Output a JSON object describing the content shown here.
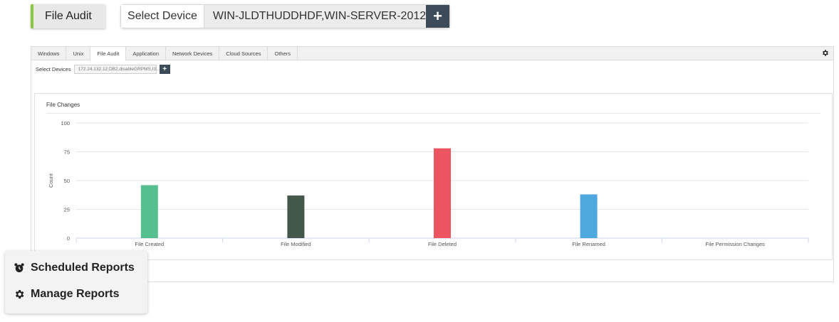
{
  "header": {
    "category_label": "File Audit",
    "device_label": "Select Device",
    "device_value": "WIN-JLDTHUDDHDF,WIN-SERVER-2012",
    "add_symbol": "+"
  },
  "report": {
    "tabs": [
      "Windows",
      "Unix",
      "File Audit",
      "Application",
      "Network Devices",
      "Cloud Sources",
      "Others"
    ],
    "active_tab": "File Audit",
    "settings_icon": "gear-icon",
    "select_devices_label": "Select Devices",
    "select_devices_value": "172.24.132.12,DB2,disableGRPMS,I3...",
    "add_symbol": "+"
  },
  "chart_data": {
    "type": "bar",
    "title": "File Changes",
    "xlabel": "",
    "ylabel": "Count",
    "ylim": [
      0,
      100
    ],
    "yticks": [
      0,
      25,
      50,
      75,
      100
    ],
    "categories": [
      "File Created",
      "File Modified",
      "File Deleted",
      "File Renamed",
      "File Permission Changes"
    ],
    "values": [
      46,
      37,
      78,
      38,
      0
    ],
    "colors": [
      "#55bf8f",
      "#44574b",
      "#ea5560",
      "#4ea8de",
      "#999999"
    ],
    "grid": true,
    "legend": "none"
  },
  "float_menu": {
    "items": [
      {
        "label": "Scheduled Reports",
        "icon": "alarm-clock-icon"
      },
      {
        "label": "Manage Reports",
        "icon": "gear-icon"
      }
    ]
  }
}
